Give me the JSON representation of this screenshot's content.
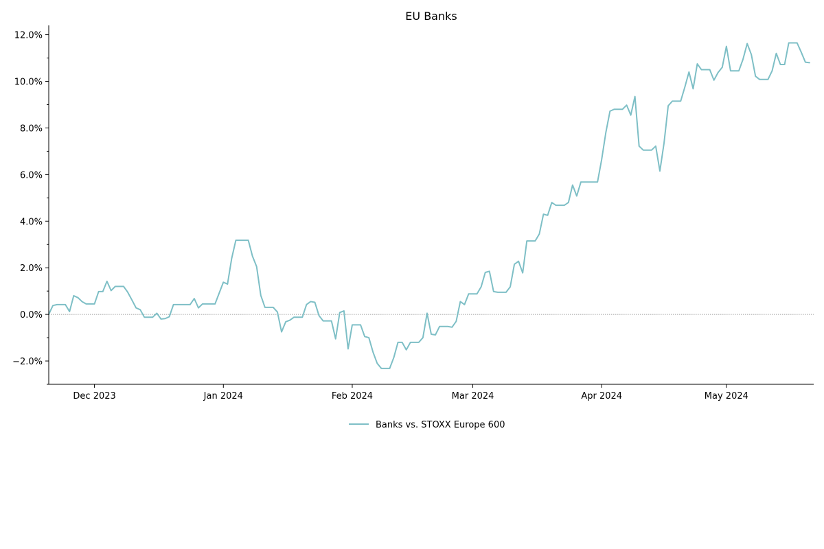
{
  "chart_data": {
    "type": "line",
    "title": "EU Banks",
    "xlabel": "",
    "ylabel": "",
    "x_range": [
      "2023-11-20",
      "2024-05-22"
    ],
    "x_ticks": [
      {
        "date": "2023-12-01",
        "label": "Dec 2023"
      },
      {
        "date": "2024-01-01",
        "label": "Jan 2024"
      },
      {
        "date": "2024-02-01",
        "label": "Feb 2024"
      },
      {
        "date": "2024-03-01",
        "label": "Mar 2024"
      },
      {
        "date": "2024-04-01",
        "label": "Apr 2024"
      },
      {
        "date": "2024-05-01",
        "label": "May 2024"
      }
    ],
    "ylim": [
      -3.0,
      12.4
    ],
    "y_ticks": [
      -2.0,
      0.0,
      2.0,
      4.0,
      6.0,
      8.0,
      10.0,
      12.0
    ],
    "y_tick_labels": [
      "−2.0%",
      "0.0%",
      "2.0%",
      "4.0%",
      "6.0%",
      "8.0%",
      "10.0%",
      "12.0%"
    ],
    "y_unit": "%",
    "reference_line": {
      "y": 0.0,
      "style": "dotted",
      "color": "#888888"
    },
    "grid": false,
    "legend": {
      "placement": "bottom-center"
    },
    "series": [
      {
        "name": "Banks vs. STOXX Europe 600",
        "color": "#7ebfc6",
        "points": [
          [
            "2023-11-20",
            0.0
          ],
          [
            "2023-11-21",
            0.38
          ],
          [
            "2023-11-22",
            0.42
          ],
          [
            "2023-11-23",
            0.42
          ],
          [
            "2023-11-24",
            0.42
          ],
          [
            "2023-11-25",
            0.12
          ],
          [
            "2023-11-26",
            0.8
          ],
          [
            "2023-11-27",
            0.72
          ],
          [
            "2023-11-28",
            0.55
          ],
          [
            "2023-11-29",
            0.45
          ],
          [
            "2023-11-30",
            0.45
          ],
          [
            "2023-12-01",
            0.45
          ],
          [
            "2023-12-02",
            0.98
          ],
          [
            "2023-12-03",
            0.98
          ],
          [
            "2023-12-04",
            1.42
          ],
          [
            "2023-12-05",
            1.02
          ],
          [
            "2023-12-06",
            1.2
          ],
          [
            "2023-12-07",
            1.2
          ],
          [
            "2023-12-08",
            1.2
          ],
          [
            "2023-12-09",
            0.95
          ],
          [
            "2023-12-10",
            0.62
          ],
          [
            "2023-12-11",
            0.28
          ],
          [
            "2023-12-12",
            0.2
          ],
          [
            "2023-12-13",
            -0.12
          ],
          [
            "2023-12-14",
            -0.12
          ],
          [
            "2023-12-15",
            -0.12
          ],
          [
            "2023-12-16",
            0.05
          ],
          [
            "2023-12-17",
            -0.2
          ],
          [
            "2023-12-18",
            -0.18
          ],
          [
            "2023-12-19",
            -0.1
          ],
          [
            "2023-12-20",
            0.42
          ],
          [
            "2023-12-21",
            0.42
          ],
          [
            "2023-12-22",
            0.42
          ],
          [
            "2023-12-23",
            0.42
          ],
          [
            "2023-12-24",
            0.42
          ],
          [
            "2023-12-25",
            0.68
          ],
          [
            "2023-12-26",
            0.28
          ],
          [
            "2023-12-27",
            0.45
          ],
          [
            "2023-12-28",
            0.45
          ],
          [
            "2023-12-29",
            0.45
          ],
          [
            "2023-12-30",
            0.45
          ],
          [
            "2024-01-01",
            1.38
          ],
          [
            "2024-01-02",
            1.3
          ],
          [
            "2024-01-03",
            2.4
          ],
          [
            "2024-01-04",
            3.18
          ],
          [
            "2024-01-05",
            3.18
          ],
          [
            "2024-01-06",
            3.18
          ],
          [
            "2024-01-07",
            3.18
          ],
          [
            "2024-01-08",
            2.5
          ],
          [
            "2024-01-09",
            2.05
          ],
          [
            "2024-01-10",
            0.82
          ],
          [
            "2024-01-11",
            0.3
          ],
          [
            "2024-01-12",
            0.3
          ],
          [
            "2024-01-13",
            0.3
          ],
          [
            "2024-01-14",
            0.1
          ],
          [
            "2024-01-15",
            -0.75
          ],
          [
            "2024-01-16",
            -0.32
          ],
          [
            "2024-01-17",
            -0.25
          ],
          [
            "2024-01-18",
            -0.12
          ],
          [
            "2024-01-19",
            -0.12
          ],
          [
            "2024-01-20",
            -0.12
          ],
          [
            "2024-01-21",
            0.42
          ],
          [
            "2024-01-22",
            0.55
          ],
          [
            "2024-01-23",
            0.52
          ],
          [
            "2024-01-24",
            -0.05
          ],
          [
            "2024-01-25",
            -0.28
          ],
          [
            "2024-01-26",
            -0.28
          ],
          [
            "2024-01-27",
            -0.28
          ],
          [
            "2024-01-28",
            -1.05
          ],
          [
            "2024-01-29",
            0.08
          ],
          [
            "2024-01-30",
            0.15
          ],
          [
            "2024-01-31",
            -1.48
          ],
          [
            "2024-02-01",
            -0.45
          ],
          [
            "2024-02-02",
            -0.45
          ],
          [
            "2024-02-03",
            -0.45
          ],
          [
            "2024-02-04",
            -0.95
          ],
          [
            "2024-02-05",
            -1.0
          ],
          [
            "2024-02-06",
            -1.62
          ],
          [
            "2024-02-07",
            -2.1
          ],
          [
            "2024-02-08",
            -2.32
          ],
          [
            "2024-02-09",
            -2.32
          ],
          [
            "2024-02-10",
            -2.32
          ],
          [
            "2024-02-11",
            -1.85
          ],
          [
            "2024-02-12",
            -1.2
          ],
          [
            "2024-02-13",
            -1.2
          ],
          [
            "2024-02-14",
            -1.52
          ],
          [
            "2024-02-15",
            -1.2
          ],
          [
            "2024-02-16",
            -1.2
          ],
          [
            "2024-02-17",
            -1.2
          ],
          [
            "2024-02-18",
            -1.0
          ],
          [
            "2024-02-19",
            0.05
          ],
          [
            "2024-02-20",
            -0.85
          ],
          [
            "2024-02-21",
            -0.88
          ],
          [
            "2024-02-22",
            -0.52
          ],
          [
            "2024-02-23",
            -0.52
          ],
          [
            "2024-02-24",
            -0.52
          ],
          [
            "2024-02-25",
            -0.55
          ],
          [
            "2024-02-26",
            -0.3
          ],
          [
            "2024-02-27",
            0.55
          ],
          [
            "2024-02-28",
            0.42
          ],
          [
            "2024-02-29",
            0.88
          ],
          [
            "2024-03-01",
            0.88
          ],
          [
            "2024-03-02",
            0.88
          ],
          [
            "2024-03-03",
            1.18
          ],
          [
            "2024-03-04",
            1.8
          ],
          [
            "2024-03-05",
            1.85
          ],
          [
            "2024-03-06",
            0.98
          ],
          [
            "2024-03-07",
            0.95
          ],
          [
            "2024-03-08",
            0.95
          ],
          [
            "2024-03-09",
            0.95
          ],
          [
            "2024-03-10",
            1.18
          ],
          [
            "2024-03-11",
            2.15
          ],
          [
            "2024-03-12",
            2.28
          ],
          [
            "2024-03-13",
            1.78
          ],
          [
            "2024-03-14",
            3.15
          ],
          [
            "2024-03-15",
            3.15
          ],
          [
            "2024-03-16",
            3.15
          ],
          [
            "2024-03-17",
            3.45
          ],
          [
            "2024-03-18",
            4.3
          ],
          [
            "2024-03-19",
            4.25
          ],
          [
            "2024-03-20",
            4.8
          ],
          [
            "2024-03-21",
            4.68
          ],
          [
            "2024-03-22",
            4.68
          ],
          [
            "2024-03-23",
            4.68
          ],
          [
            "2024-03-24",
            4.8
          ],
          [
            "2024-03-25",
            5.55
          ],
          [
            "2024-03-26",
            5.08
          ],
          [
            "2024-03-27",
            5.68
          ],
          [
            "2024-03-28",
            5.68
          ],
          [
            "2024-03-29",
            5.68
          ],
          [
            "2024-03-30",
            5.68
          ],
          [
            "2024-03-31",
            5.68
          ],
          [
            "2024-04-01",
            6.65
          ],
          [
            "2024-04-02",
            7.8
          ],
          [
            "2024-04-03",
            8.72
          ],
          [
            "2024-04-04",
            8.8
          ],
          [
            "2024-04-05",
            8.8
          ],
          [
            "2024-04-06",
            8.8
          ],
          [
            "2024-04-07",
            8.98
          ],
          [
            "2024-04-08",
            8.55
          ],
          [
            "2024-04-09",
            9.35
          ],
          [
            "2024-04-10",
            7.22
          ],
          [
            "2024-04-11",
            7.05
          ],
          [
            "2024-04-12",
            7.05
          ],
          [
            "2024-04-13",
            7.05
          ],
          [
            "2024-04-14",
            7.22
          ],
          [
            "2024-04-15",
            6.15
          ],
          [
            "2024-04-16",
            7.35
          ],
          [
            "2024-04-17",
            8.95
          ],
          [
            "2024-04-18",
            9.15
          ],
          [
            "2024-04-19",
            9.15
          ],
          [
            "2024-04-20",
            9.15
          ],
          [
            "2024-04-21",
            9.75
          ],
          [
            "2024-04-22",
            10.4
          ],
          [
            "2024-04-23",
            9.68
          ],
          [
            "2024-04-24",
            10.75
          ],
          [
            "2024-04-25",
            10.5
          ],
          [
            "2024-04-26",
            10.5
          ],
          [
            "2024-04-27",
            10.5
          ],
          [
            "2024-04-28",
            10.05
          ],
          [
            "2024-04-29",
            10.38
          ],
          [
            "2024-04-30",
            10.6
          ],
          [
            "2024-05-01",
            11.5
          ],
          [
            "2024-05-02",
            10.45
          ],
          [
            "2024-05-03",
            10.45
          ],
          [
            "2024-05-04",
            10.45
          ],
          [
            "2024-05-05",
            10.95
          ],
          [
            "2024-05-06",
            11.62
          ],
          [
            "2024-05-07",
            11.15
          ],
          [
            "2024-05-08",
            10.22
          ],
          [
            "2024-05-09",
            10.08
          ],
          [
            "2024-05-10",
            10.08
          ],
          [
            "2024-05-11",
            10.08
          ],
          [
            "2024-05-12",
            10.45
          ],
          [
            "2024-05-13",
            11.2
          ],
          [
            "2024-05-14",
            10.72
          ],
          [
            "2024-05-15",
            10.72
          ],
          [
            "2024-05-16",
            11.65
          ],
          [
            "2024-05-17",
            11.65
          ],
          [
            "2024-05-18",
            11.65
          ],
          [
            "2024-05-19",
            11.25
          ],
          [
            "2024-05-20",
            10.82
          ],
          [
            "2024-05-21",
            10.8
          ]
        ]
      }
    ]
  }
}
